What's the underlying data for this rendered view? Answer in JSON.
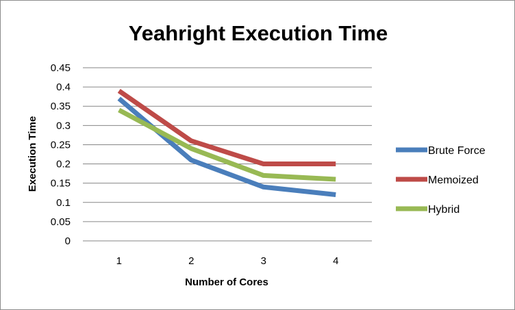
{
  "chart_data": {
    "type": "line",
    "title": "Yeahright Execution Time",
    "xlabel": "Number of Cores",
    "ylabel": "Execution Time",
    "categories": [
      "1",
      "2",
      "3",
      "4"
    ],
    "ylim": [
      0,
      0.45
    ],
    "yticks": [
      "0",
      "0.05",
      "0.1",
      "0.15",
      "0.2",
      "0.25",
      "0.3",
      "0.35",
      "0.4",
      "0.45"
    ],
    "grid": true,
    "legend_position": "right",
    "series": [
      {
        "name": "Brute Force",
        "color": "#4a7ebb",
        "values": [
          0.37,
          0.21,
          0.14,
          0.12
        ]
      },
      {
        "name": "Memoized",
        "color": "#be4b48",
        "values": [
          0.39,
          0.26,
          0.2,
          0.2
        ]
      },
      {
        "name": "Hybrid",
        "color": "#98b954",
        "values": [
          0.34,
          0.24,
          0.17,
          0.16
        ]
      }
    ]
  }
}
